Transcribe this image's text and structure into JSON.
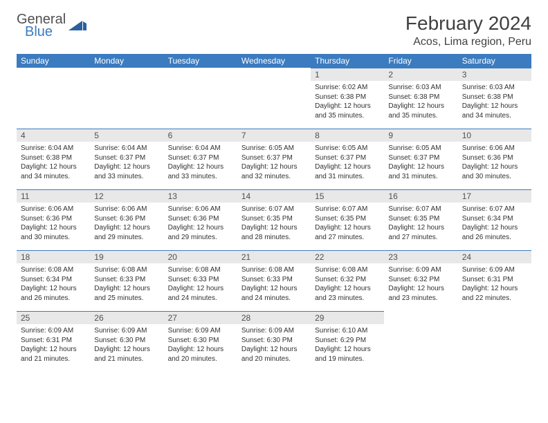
{
  "brand": {
    "top": "General",
    "bottom": "Blue",
    "shape_color": "#2b5f9e"
  },
  "title": "February 2024",
  "location": "Acos, Lima region, Peru",
  "colors": {
    "header_bg": "#3b7bbf",
    "header_text": "#ffffff",
    "daynum_bg": "#e8e8e8",
    "body_text": "#303030",
    "title_text": "#404040",
    "logo_gray": "#505050",
    "logo_blue": "#3b7bbf",
    "rule": "#3b7bbf"
  },
  "dayNames": [
    "Sunday",
    "Monday",
    "Tuesday",
    "Wednesday",
    "Thursday",
    "Friday",
    "Saturday"
  ],
  "weeks": [
    [
      null,
      null,
      null,
      null,
      {
        "n": "1",
        "sr": "6:02 AM",
        "ss": "6:38 PM",
        "dl": "12 hours and 35 minutes."
      },
      {
        "n": "2",
        "sr": "6:03 AM",
        "ss": "6:38 PM",
        "dl": "12 hours and 35 minutes."
      },
      {
        "n": "3",
        "sr": "6:03 AM",
        "ss": "6:38 PM",
        "dl": "12 hours and 34 minutes."
      }
    ],
    [
      {
        "n": "4",
        "sr": "6:04 AM",
        "ss": "6:38 PM",
        "dl": "12 hours and 34 minutes."
      },
      {
        "n": "5",
        "sr": "6:04 AM",
        "ss": "6:37 PM",
        "dl": "12 hours and 33 minutes."
      },
      {
        "n": "6",
        "sr": "6:04 AM",
        "ss": "6:37 PM",
        "dl": "12 hours and 33 minutes."
      },
      {
        "n": "7",
        "sr": "6:05 AM",
        "ss": "6:37 PM",
        "dl": "12 hours and 32 minutes."
      },
      {
        "n": "8",
        "sr": "6:05 AM",
        "ss": "6:37 PM",
        "dl": "12 hours and 31 minutes."
      },
      {
        "n": "9",
        "sr": "6:05 AM",
        "ss": "6:37 PM",
        "dl": "12 hours and 31 minutes."
      },
      {
        "n": "10",
        "sr": "6:06 AM",
        "ss": "6:36 PM",
        "dl": "12 hours and 30 minutes."
      }
    ],
    [
      {
        "n": "11",
        "sr": "6:06 AM",
        "ss": "6:36 PM",
        "dl": "12 hours and 30 minutes."
      },
      {
        "n": "12",
        "sr": "6:06 AM",
        "ss": "6:36 PM",
        "dl": "12 hours and 29 minutes."
      },
      {
        "n": "13",
        "sr": "6:06 AM",
        "ss": "6:36 PM",
        "dl": "12 hours and 29 minutes."
      },
      {
        "n": "14",
        "sr": "6:07 AM",
        "ss": "6:35 PM",
        "dl": "12 hours and 28 minutes."
      },
      {
        "n": "15",
        "sr": "6:07 AM",
        "ss": "6:35 PM",
        "dl": "12 hours and 27 minutes."
      },
      {
        "n": "16",
        "sr": "6:07 AM",
        "ss": "6:35 PM",
        "dl": "12 hours and 27 minutes."
      },
      {
        "n": "17",
        "sr": "6:07 AM",
        "ss": "6:34 PM",
        "dl": "12 hours and 26 minutes."
      }
    ],
    [
      {
        "n": "18",
        "sr": "6:08 AM",
        "ss": "6:34 PM",
        "dl": "12 hours and 26 minutes."
      },
      {
        "n": "19",
        "sr": "6:08 AM",
        "ss": "6:33 PM",
        "dl": "12 hours and 25 minutes."
      },
      {
        "n": "20",
        "sr": "6:08 AM",
        "ss": "6:33 PM",
        "dl": "12 hours and 24 minutes."
      },
      {
        "n": "21",
        "sr": "6:08 AM",
        "ss": "6:33 PM",
        "dl": "12 hours and 24 minutes."
      },
      {
        "n": "22",
        "sr": "6:08 AM",
        "ss": "6:32 PM",
        "dl": "12 hours and 23 minutes."
      },
      {
        "n": "23",
        "sr": "6:09 AM",
        "ss": "6:32 PM",
        "dl": "12 hours and 23 minutes."
      },
      {
        "n": "24",
        "sr": "6:09 AM",
        "ss": "6:31 PM",
        "dl": "12 hours and 22 minutes."
      }
    ],
    [
      {
        "n": "25",
        "sr": "6:09 AM",
        "ss": "6:31 PM",
        "dl": "12 hours and 21 minutes."
      },
      {
        "n": "26",
        "sr": "6:09 AM",
        "ss": "6:30 PM",
        "dl": "12 hours and 21 minutes."
      },
      {
        "n": "27",
        "sr": "6:09 AM",
        "ss": "6:30 PM",
        "dl": "12 hours and 20 minutes."
      },
      {
        "n": "28",
        "sr": "6:09 AM",
        "ss": "6:30 PM",
        "dl": "12 hours and 20 minutes."
      },
      {
        "n": "29",
        "sr": "6:10 AM",
        "ss": "6:29 PM",
        "dl": "12 hours and 19 minutes."
      },
      null,
      null
    ]
  ],
  "labels": {
    "sunrise": "Sunrise:",
    "sunset": "Sunset:",
    "daylight": "Daylight:"
  }
}
